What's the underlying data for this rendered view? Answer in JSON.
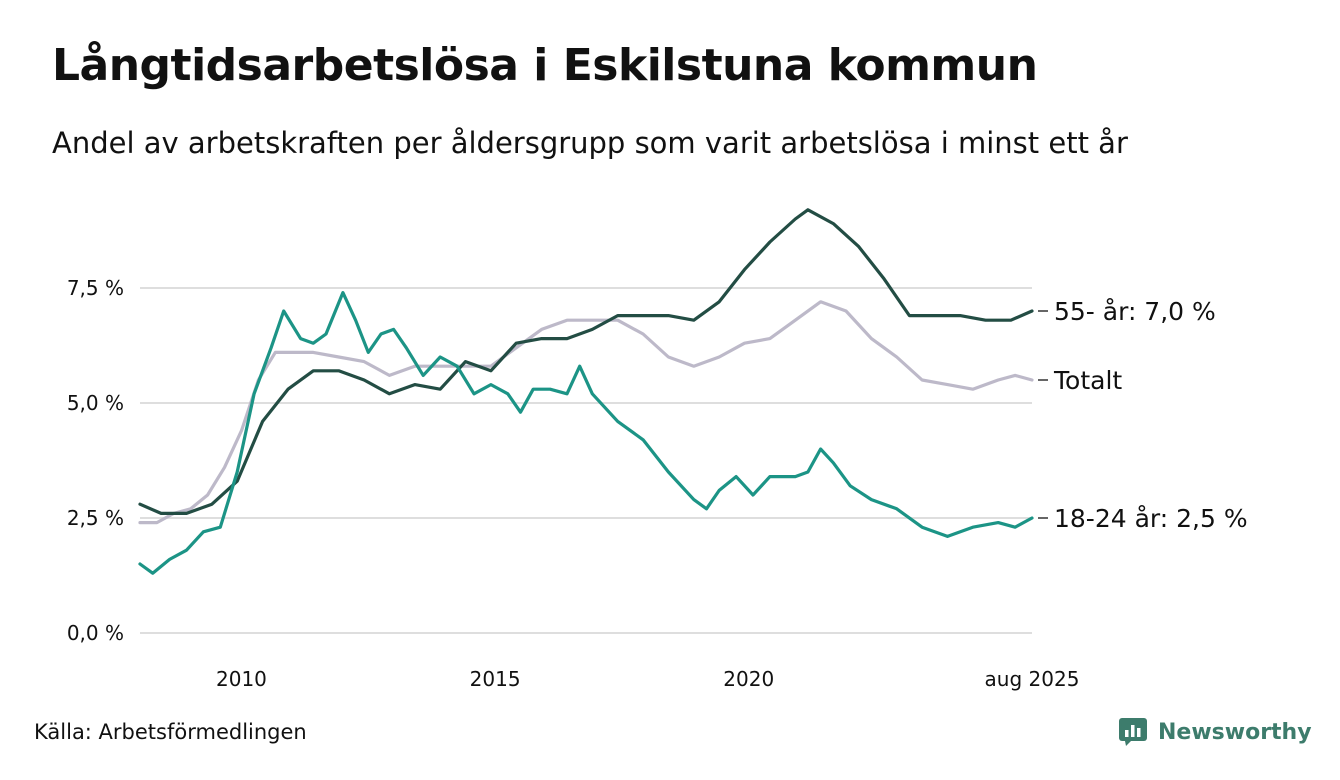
{
  "colors": {
    "series_55": "#234d44",
    "series_total": "#bdb9c9",
    "series_18_24": "#1c9486",
    "grid": "#dedede",
    "brand": "#3d7c6c"
  },
  "footer": {
    "source": "Källa: Arbetsförmedlingen",
    "brand": "Newsworthy",
    "brand_icon": "newsworthy-logo-icon"
  },
  "chart_data": {
    "type": "line",
    "title": "Långtidsarbetslösa i Eskilstuna kommun",
    "subtitle": "Andel av arbetskraften per åldersgrupp som varit arbetslösa i minst ett år",
    "x_range": [
      "2008-01",
      "2025-08"
    ],
    "x_ticks": [
      {
        "date": "2010-01",
        "label": "2010"
      },
      {
        "date": "2015-01",
        "label": "2015"
      },
      {
        "date": "2020-01",
        "label": "2020"
      },
      {
        "date": "2025-08",
        "label": "aug 2025"
      }
    ],
    "ylim": [
      0,
      10
    ],
    "y_ticks": [
      {
        "value": 0,
        "label": "0,0 %"
      },
      {
        "value": 2.5,
        "label": "2,5 %"
      },
      {
        "value": 5,
        "label": "5,0 %"
      },
      {
        "value": 7.5,
        "label": "7,5 %"
      }
    ],
    "grid": "horizontal",
    "legend": "end-labels",
    "series": [
      {
        "name": "Totalt",
        "end_label": "Totalt",
        "color": "#bdb9c9",
        "points": [
          [
            "2008-01",
            2.4
          ],
          [
            "2008-05",
            2.4
          ],
          [
            "2008-09",
            2.6
          ],
          [
            "2009-01",
            2.7
          ],
          [
            "2009-05",
            3.0
          ],
          [
            "2009-09",
            3.6
          ],
          [
            "2010-01",
            4.4
          ],
          [
            "2010-05",
            5.5
          ],
          [
            "2010-09",
            6.1
          ],
          [
            "2011-01",
            6.1
          ],
          [
            "2011-06",
            6.1
          ],
          [
            "2011-12",
            6.0
          ],
          [
            "2012-06",
            5.9
          ],
          [
            "2012-12",
            5.6
          ],
          [
            "2013-06",
            5.8
          ],
          [
            "2013-12",
            5.8
          ],
          [
            "2014-06",
            5.8
          ],
          [
            "2014-12",
            5.8
          ],
          [
            "2015-06",
            6.2
          ],
          [
            "2015-12",
            6.6
          ],
          [
            "2016-06",
            6.8
          ],
          [
            "2016-12",
            6.8
          ],
          [
            "2017-06",
            6.8
          ],
          [
            "2017-12",
            6.5
          ],
          [
            "2018-06",
            6.0
          ],
          [
            "2018-12",
            5.8
          ],
          [
            "2019-06",
            6.0
          ],
          [
            "2019-12",
            6.3
          ],
          [
            "2020-06",
            6.4
          ],
          [
            "2020-12",
            6.8
          ],
          [
            "2021-06",
            7.2
          ],
          [
            "2021-12",
            7.0
          ],
          [
            "2022-06",
            6.4
          ],
          [
            "2022-12",
            6.0
          ],
          [
            "2023-06",
            5.5
          ],
          [
            "2023-12",
            5.4
          ],
          [
            "2024-06",
            5.3
          ],
          [
            "2024-12",
            5.5
          ],
          [
            "2025-04",
            5.6
          ],
          [
            "2025-08",
            5.5
          ]
        ]
      },
      {
        "name": "55- år",
        "end_label": "55- år: 7,0 %",
        "color": "#234d44",
        "points": [
          [
            "2008-01",
            2.8
          ],
          [
            "2008-06",
            2.6
          ],
          [
            "2008-12",
            2.6
          ],
          [
            "2009-06",
            2.8
          ],
          [
            "2009-12",
            3.3
          ],
          [
            "2010-06",
            4.6
          ],
          [
            "2010-12",
            5.3
          ],
          [
            "2011-06",
            5.7
          ],
          [
            "2011-12",
            5.7
          ],
          [
            "2012-06",
            5.5
          ],
          [
            "2012-12",
            5.2
          ],
          [
            "2013-06",
            5.4
          ],
          [
            "2013-12",
            5.3
          ],
          [
            "2014-06",
            5.9
          ],
          [
            "2014-12",
            5.7
          ],
          [
            "2015-06",
            6.3
          ],
          [
            "2015-12",
            6.4
          ],
          [
            "2016-06",
            6.4
          ],
          [
            "2016-12",
            6.6
          ],
          [
            "2017-06",
            6.9
          ],
          [
            "2017-12",
            6.9
          ],
          [
            "2018-06",
            6.9
          ],
          [
            "2018-12",
            6.8
          ],
          [
            "2019-06",
            7.2
          ],
          [
            "2019-12",
            7.9
          ],
          [
            "2020-06",
            8.5
          ],
          [
            "2020-12",
            9.0
          ],
          [
            "2021-03",
            9.2
          ],
          [
            "2021-09",
            8.9
          ],
          [
            "2022-03",
            8.4
          ],
          [
            "2022-09",
            7.7
          ],
          [
            "2023-03",
            6.9
          ],
          [
            "2023-09",
            6.9
          ],
          [
            "2024-03",
            6.9
          ],
          [
            "2024-09",
            6.8
          ],
          [
            "2025-03",
            6.8
          ],
          [
            "2025-08",
            7.0
          ]
        ]
      },
      {
        "name": "18-24 år",
        "end_label": "18-24 år: 2,5 %",
        "color": "#1c9486",
        "points": [
          [
            "2008-01",
            1.5
          ],
          [
            "2008-04",
            1.3
          ],
          [
            "2008-08",
            1.6
          ],
          [
            "2008-12",
            1.8
          ],
          [
            "2009-04",
            2.2
          ],
          [
            "2009-08",
            2.3
          ],
          [
            "2009-12",
            3.5
          ],
          [
            "2010-04",
            5.2
          ],
          [
            "2010-08",
            6.2
          ],
          [
            "2010-11",
            7.0
          ],
          [
            "2011-03",
            6.4
          ],
          [
            "2011-06",
            6.3
          ],
          [
            "2011-09",
            6.5
          ],
          [
            "2012-01",
            7.4
          ],
          [
            "2012-04",
            6.8
          ],
          [
            "2012-07",
            6.1
          ],
          [
            "2012-10",
            6.5
          ],
          [
            "2013-01",
            6.6
          ],
          [
            "2013-04",
            6.2
          ],
          [
            "2013-08",
            5.6
          ],
          [
            "2013-12",
            6.0
          ],
          [
            "2014-04",
            5.8
          ],
          [
            "2014-08",
            5.2
          ],
          [
            "2014-12",
            5.4
          ],
          [
            "2015-04",
            5.2
          ],
          [
            "2015-07",
            4.8
          ],
          [
            "2015-10",
            5.3
          ],
          [
            "2016-02",
            5.3
          ],
          [
            "2016-06",
            5.2
          ],
          [
            "2016-09",
            5.8
          ],
          [
            "2016-12",
            5.2
          ],
          [
            "2017-06",
            4.6
          ],
          [
            "2017-12",
            4.2
          ],
          [
            "2018-06",
            3.5
          ],
          [
            "2018-12",
            2.9
          ],
          [
            "2019-03",
            2.7
          ],
          [
            "2019-06",
            3.1
          ],
          [
            "2019-10",
            3.4
          ],
          [
            "2020-02",
            3.0
          ],
          [
            "2020-06",
            3.4
          ],
          [
            "2020-12",
            3.4
          ],
          [
            "2021-03",
            3.5
          ],
          [
            "2021-06",
            4.0
          ],
          [
            "2021-09",
            3.7
          ],
          [
            "2022-01",
            3.2
          ],
          [
            "2022-06",
            2.9
          ],
          [
            "2022-12",
            2.7
          ],
          [
            "2023-06",
            2.3
          ],
          [
            "2023-12",
            2.1
          ],
          [
            "2024-06",
            2.3
          ],
          [
            "2024-12",
            2.4
          ],
          [
            "2025-04",
            2.3
          ],
          [
            "2025-08",
            2.5
          ]
        ]
      }
    ]
  }
}
